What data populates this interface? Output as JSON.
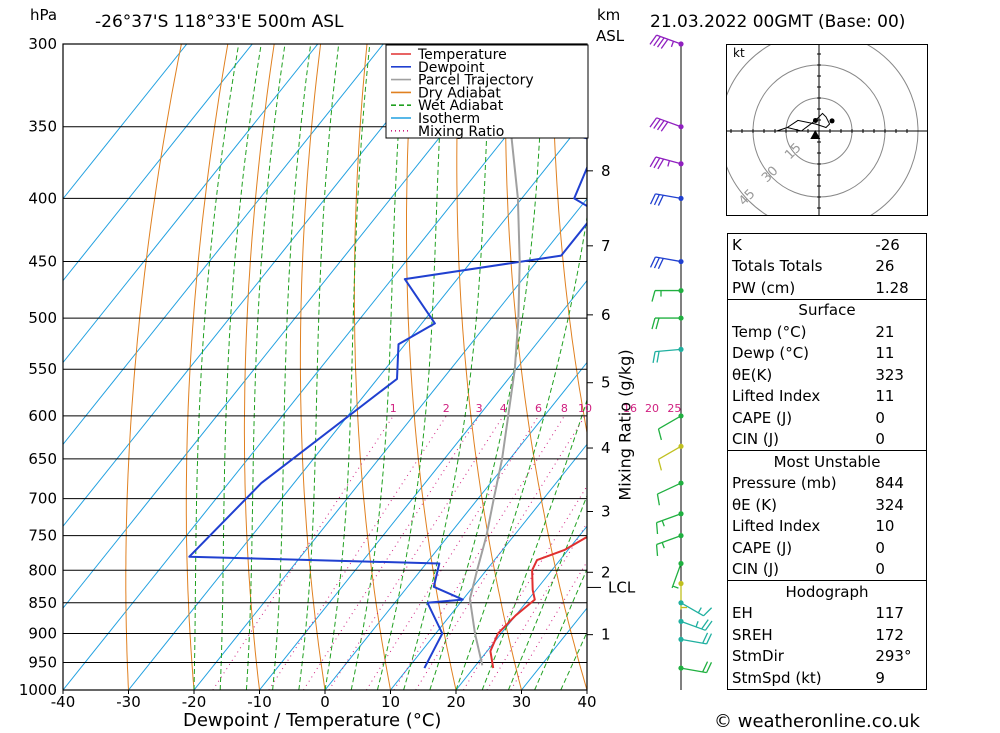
{
  "header": {
    "pressure_unit": "hPa",
    "location": "-26°37'S 118°33'E 500m ASL",
    "height_unit": "km",
    "height_unit_sub": "ASL",
    "datetime": "21.03.2022 00GMT (Base: 00)"
  },
  "footer": {
    "copyright": "© weatheronline.co.uk"
  },
  "chart_data": {
    "type": "line",
    "subtype": "skew-t log-p",
    "xlabel": "Dewpoint / Temperature (°C)",
    "ylabel": "hPa",
    "mixing_ratio_axis_label": "Mixing Ratio (g/kg)",
    "xlim": [
      -40,
      40
    ],
    "ylim": [
      1000,
      300
    ],
    "x_ticks": [
      -40,
      -30,
      -20,
      -10,
      0,
      10,
      20,
      30,
      40
    ],
    "y_ticks": [
      300,
      350,
      400,
      450,
      500,
      550,
      600,
      650,
      700,
      750,
      800,
      850,
      900,
      950,
      1000
    ],
    "km_ticks": [
      {
        "label": "8",
        "p": 380
      },
      {
        "label": "7",
        "p": 437
      },
      {
        "label": "6",
        "p": 497
      },
      {
        "label": "5",
        "p": 564
      },
      {
        "label": "4",
        "p": 637
      },
      {
        "label": "3",
        "p": 717
      },
      {
        "label": "2",
        "p": 803
      },
      {
        "label": "1",
        "p": 902
      }
    ],
    "lcl": {
      "label": "LCL",
      "p": 826
    },
    "mixing_ratio_labels": [
      "1",
      "2",
      "3",
      "4",
      "6",
      "8",
      "10",
      "16",
      "20",
      "25"
    ],
    "legend": {
      "position": "top-right",
      "items": [
        {
          "name": "Temperature",
          "color": "#e03030",
          "style": "solid"
        },
        {
          "name": "Dewpoint",
          "color": "#2040d0",
          "style": "solid"
        },
        {
          "name": "Parcel Trajectory",
          "color": "#a0a0a0",
          "style": "solid"
        },
        {
          "name": "Dry Adiabat",
          "color": "#e08020",
          "style": "solid"
        },
        {
          "name": "Wet Adiabat",
          "color": "#20a020",
          "style": "dashed"
        },
        {
          "name": "Isotherm",
          "color": "#20a0e0",
          "style": "solid"
        },
        {
          "name": "Mixing Ratio",
          "color": "#d02080",
          "style": "dotted"
        }
      ]
    },
    "series": [
      {
        "name": "Temperature",
        "color": "#e03030",
        "points": [
          {
            "p": 960,
            "t": 23.0
          },
          {
            "p": 930,
            "t": 20.5
          },
          {
            "p": 900,
            "t": 19.5
          },
          {
            "p": 870,
            "t": 20.0
          },
          {
            "p": 845,
            "t": 21.0
          },
          {
            "p": 830,
            "t": 19.5
          },
          {
            "p": 800,
            "t": 17.0
          },
          {
            "p": 785,
            "t": 16.5
          },
          {
            "p": 770,
            "t": 19.5
          },
          {
            "p": 750,
            "t": 21.5
          },
          {
            "p": 720,
            "t": 22.5
          },
          {
            "p": 680,
            "t": 21.5
          },
          {
            "p": 640,
            "t": 18.5
          },
          {
            "p": 600,
            "t": 14.0
          },
          {
            "p": 560,
            "t": 9.5
          },
          {
            "p": 530,
            "t": 7.0
          },
          {
            "p": 500,
            "t": 5.5
          },
          {
            "p": 470,
            "t": 1.0
          },
          {
            "p": 450,
            "t": -2.0
          },
          {
            "p": 410,
            "t": -9.0
          },
          {
            "p": 380,
            "t": -13.0
          },
          {
            "p": 370,
            "t": -13.5
          },
          {
            "p": 300,
            "t": -31.0
          }
        ]
      },
      {
        "name": "Dewpoint",
        "color": "#2040d0",
        "points": [
          {
            "p": 960,
            "t": 12.5
          },
          {
            "p": 900,
            "t": 11.0
          },
          {
            "p": 850,
            "t": 5.0
          },
          {
            "p": 845,
            "t": 10.0
          },
          {
            "p": 825,
            "t": 4.0
          },
          {
            "p": 790,
            "t": 2.0
          },
          {
            "p": 780,
            "t": -37.0
          },
          {
            "p": 680,
            "t": -35.0
          },
          {
            "p": 560,
            "t": -27.0
          },
          {
            "p": 525,
            "t": -31.0
          },
          {
            "p": 505,
            "t": -28.0
          },
          {
            "p": 465,
            "t": -38.0
          },
          {
            "p": 445,
            "t": -17.0
          },
          {
            "p": 410,
            "t": -17.0
          },
          {
            "p": 400,
            "t": -22.0
          },
          {
            "p": 375,
            "t": -24.0
          },
          {
            "p": 360,
            "t": -24.5
          },
          {
            "p": 350,
            "t": -37.0
          },
          {
            "p": 300,
            "t": -46.0
          }
        ]
      },
      {
        "name": "Parcel Trajectory",
        "color": "#a0a0a0",
        "points": [
          {
            "p": 955,
            "t": 21.0
          },
          {
            "p": 900,
            "t": 16.0
          },
          {
            "p": 844,
            "t": 11.0
          },
          {
            "p": 800,
            "t": 8.6
          },
          {
            "p": 750,
            "t": 5.8
          },
          {
            "p": 700,
            "t": 2.4
          },
          {
            "p": 650,
            "t": -1.2
          },
          {
            "p": 600,
            "t": -5.5
          },
          {
            "p": 550,
            "t": -10.2
          },
          {
            "p": 500,
            "t": -15.9
          },
          {
            "p": 450,
            "t": -22.6
          },
          {
            "p": 400,
            "t": -30.6
          },
          {
            "p": 350,
            "t": -40.5
          },
          {
            "p": 300,
            "t": -52.0
          }
        ]
      }
    ],
    "wind_barbs": [
      {
        "p": 300,
        "dir": 290,
        "kt": 45,
        "color": "#9020c0"
      },
      {
        "p": 350,
        "dir": 290,
        "kt": 40,
        "color": "#9020c0"
      },
      {
        "p": 375,
        "dir": 285,
        "kt": 35,
        "color": "#9020c0"
      },
      {
        "p": 400,
        "dir": 280,
        "kt": 30,
        "color": "#2040d0"
      },
      {
        "p": 450,
        "dir": 280,
        "kt": 30,
        "color": "#2040d0"
      },
      {
        "p": 475,
        "dir": 270,
        "kt": 15,
        "color": "#20b040"
      },
      {
        "p": 500,
        "dir": 270,
        "kt": 20,
        "color": "#20b040"
      },
      {
        "p": 530,
        "dir": 265,
        "kt": 20,
        "color": "#20b0a0"
      },
      {
        "p": 600,
        "dir": 240,
        "kt": 10,
        "color": "#20b040"
      },
      {
        "p": 635,
        "dir": 240,
        "kt": 10,
        "color": "#c0c020"
      },
      {
        "p": 680,
        "dir": 245,
        "kt": 12,
        "color": "#20b040"
      },
      {
        "p": 720,
        "dir": 250,
        "kt": 15,
        "color": "#20b040"
      },
      {
        "p": 750,
        "dir": 250,
        "kt": 15,
        "color": "#20b040"
      },
      {
        "p": 790,
        "dir": 200,
        "kt": 5,
        "color": "#20b040"
      },
      {
        "p": 820,
        "dir": 180,
        "kt": 5,
        "color": "#c0c020"
      },
      {
        "p": 850,
        "dir": 120,
        "kt": 18,
        "color": "#20b0a0"
      },
      {
        "p": 880,
        "dir": 110,
        "kt": 25,
        "color": "#20b0a0"
      },
      {
        "p": 910,
        "dir": 100,
        "kt": 20,
        "color": "#20b0a0"
      },
      {
        "p": 960,
        "dir": 100,
        "kt": 20,
        "color": "#20b040"
      }
    ],
    "hodograph": {
      "unit": "kt",
      "rings": [
        "15",
        "30",
        "45"
      ],
      "trace_kt": [
        [
          -12,
          0
        ],
        [
          -9,
          1
        ],
        [
          -5,
          0
        ],
        [
          -1,
          3
        ],
        [
          1,
          5
        ],
        [
          2,
          4
        ],
        [
          3,
          2
        ],
        [
          2,
          1
        ],
        [
          -1,
          2
        ],
        [
          -6,
          3
        ],
        [
          -9,
          1
        ]
      ],
      "storm_motion": {
        "dir": 293,
        "kt": 9
      }
    }
  },
  "indices": {
    "general": [
      {
        "label": "K",
        "value": "-26"
      },
      {
        "label": "Totals Totals",
        "value": "26"
      },
      {
        "label": "PW (cm)",
        "value": "1.28"
      }
    ],
    "surface_title": "Surface",
    "surface": [
      {
        "label": "Temp (°C)",
        "value": "21"
      },
      {
        "label": "Dewp (°C)",
        "value": "11"
      },
      {
        "label": "θE(K)",
        "value": "323"
      },
      {
        "label": "Lifted Index",
        "value": "11"
      },
      {
        "label": "CAPE (J)",
        "value": "0"
      },
      {
        "label": "CIN (J)",
        "value": "0"
      }
    ],
    "most_unstable_title": "Most Unstable",
    "most_unstable": [
      {
        "label": "Pressure (mb)",
        "value": "844"
      },
      {
        "label": "θE (K)",
        "value": "324"
      },
      {
        "label": "Lifted Index",
        "value": "10"
      },
      {
        "label": "CAPE (J)",
        "value": "0"
      },
      {
        "label": "CIN (J)",
        "value": "0"
      }
    ],
    "hodograph_title": "Hodograph",
    "hodograph": [
      {
        "label": "EH",
        "value": "117"
      },
      {
        "label": "SREH",
        "value": "172"
      },
      {
        "label": "StmDir",
        "value": "293°"
      },
      {
        "label": "StmSpd (kt)",
        "value": "9"
      }
    ]
  }
}
